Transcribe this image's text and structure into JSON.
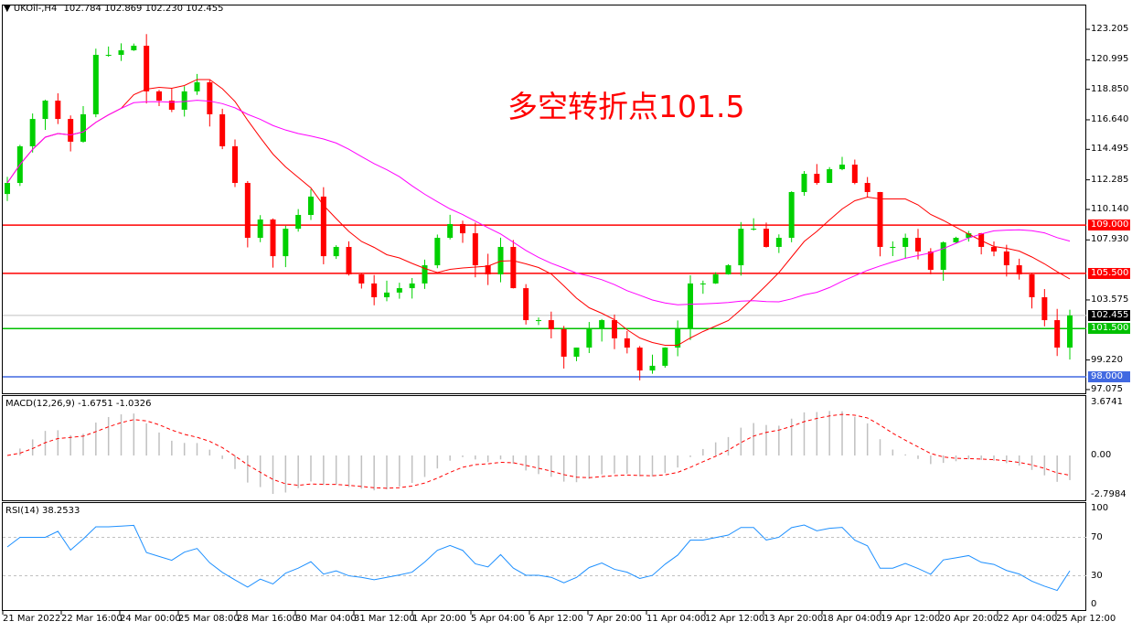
{
  "header": {
    "symbol_label": "UKOil-,H4",
    "ohlc": "102.784 102.869 102.230 102.455"
  },
  "annotation": "多空转折点101.5",
  "colors": {
    "bull": "#00d000",
    "bear": "#ff0000",
    "ma_fast": "#ff0000",
    "ma_slow": "#ff00ff",
    "macd_hist": "#c0c0c0",
    "macd_signal": "#ff0000",
    "rsi": "#1e90ff",
    "level_green": "#00c000",
    "level_blue": "#4169e1",
    "current": "#000000"
  },
  "price_axis": {
    "ticks": [
      "123.205",
      "120.995",
      "118.850",
      "116.640",
      "114.495",
      "112.285",
      "110.140",
      "107.930",
      "103.575",
      "99.220",
      "97.075"
    ]
  },
  "levels": [
    {
      "value": 109.0,
      "label": "109.000",
      "color": "#ff0000"
    },
    {
      "value": 105.5,
      "label": "105.500",
      "color": "#ff0000"
    },
    {
      "value": 101.5,
      "label": "101.500",
      "color": "#00c000"
    },
    {
      "value": 98.0,
      "label": "98.000",
      "color": "#4169e1"
    }
  ],
  "current_price": {
    "value": 102.455,
    "label": "102.455"
  },
  "macd": {
    "title": "MACD(12,26,9) -1.6751 -1.0326",
    "ticks": [
      "3.6741",
      "0.00",
      "-2.7984"
    ]
  },
  "rsi": {
    "title": "RSI(14) 38.2533",
    "ticks": [
      "100",
      "70",
      "30",
      "0"
    ]
  },
  "time_axis": [
    "21 Mar 2022",
    "22 Mar 16:00",
    "24 Mar 00:00",
    "25 Mar 08:00",
    "28 Mar 16:00",
    "30 Mar 04:00",
    "31 Mar 12:00",
    "1 Apr 20:00",
    "5 Apr 04:00",
    "6 Apr 12:00",
    "7 Apr 20:00",
    "11 Apr 04:00",
    "12 Apr 12:00",
    "13 Apr 20:00",
    "18 Apr 04:00",
    "19 Apr 12:00",
    "20 Apr 20:00",
    "22 Apr 04:00",
    "25 Apr 12:00"
  ],
  "chart_data": {
    "type": "candlestick",
    "price_range": [
      97.075,
      123.205
    ],
    "closes": [
      112.06,
      114.72,
      116.7,
      118.03,
      116.7,
      115.05,
      117.04,
      121.35,
      121.35,
      121.68,
      122.01,
      118.7,
      118.03,
      117.37,
      118.7,
      119.36,
      117.04,
      114.72,
      112.06,
      108.08,
      109.41,
      106.75,
      108.74,
      109.74,
      111.07,
      106.75,
      107.42,
      105.43,
      104.77,
      103.77,
      104.11,
      104.43,
      104.77,
      106.09,
      108.08,
      109.08,
      108.41,
      106.09,
      105.43,
      107.42,
      104.43,
      102.11,
      102.11,
      101.45,
      99.46,
      100.12,
      101.45,
      102.11,
      100.79,
      100.12,
      98.46,
      98.8,
      100.12,
      101.45,
      104.77,
      104.77,
      105.43,
      106.09,
      108.74,
      108.74,
      107.42,
      108.08,
      111.4,
      112.72,
      112.06,
      113.06,
      113.39,
      112.06,
      111.4,
      107.42,
      107.42,
      108.08,
      107.09,
      105.76,
      107.75,
      108.08,
      108.41,
      107.42,
      107.09,
      106.09,
      105.43,
      103.77,
      102.11,
      100.12,
      102.45
    ]
  }
}
